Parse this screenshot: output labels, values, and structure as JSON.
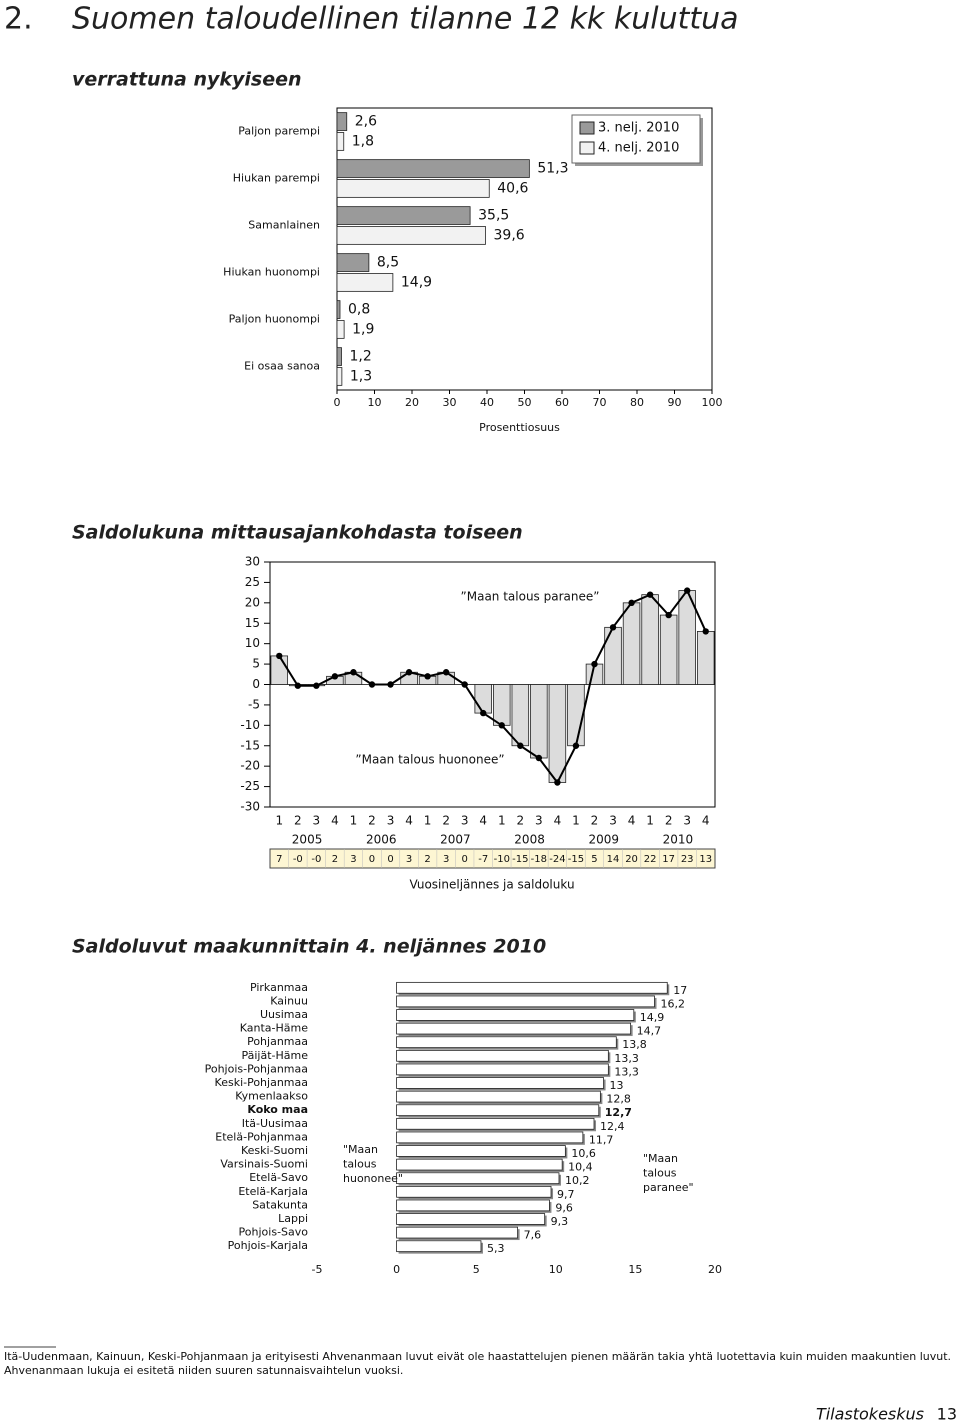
{
  "header": {
    "number": "2.",
    "title": "Suomen taloudellinen tilanne 12 kk kuluttua"
  },
  "chart_data": [
    {
      "type": "barh",
      "title": "verrattuna nykyiseen",
      "categories": [
        "Paljon parempi",
        "Hiukan parempi",
        "Samanlainen",
        "Hiukan huonompi",
        "Paljon huonompi",
        "Ei osaa sanoa"
      ],
      "series": [
        {
          "name": "3. nelj. 2010",
          "color": "#9a9a9a",
          "values": [
            2.6,
            51.3,
            35.5,
            8.5,
            0.8,
            1.2
          ],
          "value_labels": [
            "2,6",
            "51,3",
            "35,5",
            "8,5",
            "0,8",
            "1,2"
          ]
        },
        {
          "name": "4. nelj. 2010",
          "color": "#f2f2f2",
          "values": [
            1.8,
            40.6,
            39.6,
            14.9,
            1.9,
            1.3
          ],
          "value_labels": [
            "1,8",
            "40,6",
            "39,6",
            "14,9",
            "1,9",
            "1,3"
          ]
        }
      ],
      "xlim": [
        0,
        100
      ],
      "xticks": [
        0,
        10,
        20,
        30,
        40,
        50,
        60,
        70,
        80,
        90,
        100
      ],
      "xlabel": "Prosenttiosuus",
      "legend": "upper right"
    },
    {
      "type": "combo",
      "title": "Saldolukuna mittausajankohdasta toiseen",
      "categories": [
        "1",
        "2",
        "3",
        "4",
        "1",
        "2",
        "3",
        "4",
        "1",
        "2",
        "3",
        "4",
        "1",
        "2",
        "3",
        "4",
        "1",
        "2",
        "3",
        "4",
        "1",
        "2",
        "3",
        "4"
      ],
      "groups": [
        "2005",
        "2006",
        "2007",
        "2008",
        "2009",
        "2010"
      ],
      "values": [
        7,
        -0.3,
        -0.3,
        2,
        3,
        0,
        0,
        3,
        2,
        3,
        0,
        -7,
        -10,
        -15,
        -18,
        -24,
        -15,
        5,
        14,
        20,
        22,
        17,
        23,
        13
      ],
      "value_labels": [
        "7",
        "-0",
        "-0",
        "2",
        "3",
        "0",
        "0",
        "3",
        "2",
        "3",
        "0",
        "-7",
        "-10",
        "-15",
        "-18",
        "-24",
        "-15",
        "5",
        "14",
        "20",
        "22",
        "17",
        "23",
        "13"
      ],
      "bar_color": "#dcdcdc",
      "line_color": "#000000",
      "table_color": "#fdf6d3",
      "ylim": [
        -30,
        30
      ],
      "yticks": [
        -30,
        -25,
        -20,
        -15,
        -10,
        -5,
        0,
        5,
        10,
        15,
        20,
        25,
        30
      ],
      "annotations": [
        "”Maan talous paranee”",
        "”Maan talous huononee”"
      ],
      "xlabel": "Vuosineljännes ja saldoluku"
    },
    {
      "type": "barh",
      "title": "Saldoluvut maakunnittain 4. neljännes 2010",
      "categories": [
        "Pirkanmaa",
        "Kainuu",
        "Uusimaa",
        "Kanta-Häme",
        "Pohjanmaa",
        "Päijät-Häme",
        "Pohjois-Pohjanmaa",
        "Keski-Pohjanmaa",
        "Kymenlaakso",
        "Koko maa",
        "Itä-Uusimaa",
        "Etelä-Pohjanmaa",
        "Keski-Suomi",
        "Varsinais-Suomi",
        "Etelä-Savo",
        "Etelä-Karjala",
        "Satakunta",
        "Lappi",
        "Pohjois-Savo",
        "Pohjois-Karjala"
      ],
      "series": [
        {
          "color": "#ffffff",
          "values": [
            17,
            16.2,
            14.9,
            14.7,
            13.8,
            13.3,
            13.3,
            13,
            12.8,
            12.7,
            12.4,
            11.7,
            10.6,
            10.4,
            10.2,
            9.7,
            9.6,
            9.3,
            7.6,
            5.3
          ],
          "value_labels": [
            "17",
            "16,2",
            "14,9",
            "14,7",
            "13,8",
            "13,3",
            "13,3",
            "13",
            "12,8",
            "12,7",
            "12,4",
            "11,7",
            "10,6",
            "10,4",
            "10,2",
            "9,7",
            "9,6",
            "9,3",
            "7,6",
            "5,3"
          ]
        }
      ],
      "bold_categories": [
        "Koko maa"
      ],
      "xlim": [
        -5,
        20
      ],
      "xticks": [
        -5,
        0,
        5,
        10,
        15,
        20
      ],
      "annotations": [
        [
          "\"Maan",
          "talous",
          "huononee\""
        ],
        [
          "\"Maan",
          "talous",
          "paranee\""
        ]
      ]
    }
  ],
  "footnote": [
    "Itä-Uudenmaan, Kainuun, Keski-Pohjanmaan ja erityisesti Ahvenanmaan luvut eivät ole haastattelujen pienen määrän takia yhtä luotettavia kuin muiden maakuntien luvut.",
    "Ahvenanmaan lukuja ei esitetä niiden suuren satunnaisvaihtelun vuoksi."
  ],
  "footer": {
    "publisher": "Tilastokeskus",
    "page": "13"
  }
}
